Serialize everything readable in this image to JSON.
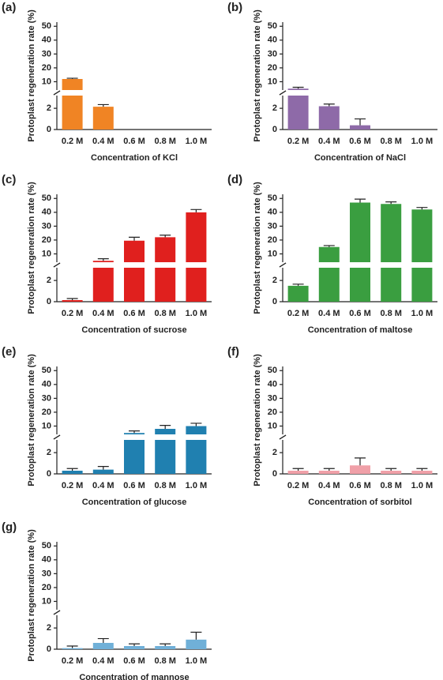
{
  "chart_data": [
    {
      "type": "bar",
      "label": "(a)",
      "y_label": "Protoplast regeneration rate (%)",
      "x_label": "Concentration of KCl",
      "categories": [
        "0.2 M",
        "0.4 M",
        "0.6 M",
        "0.8 M",
        "1.0 M"
      ],
      "values": [
        12,
        2.15,
        0,
        0,
        0
      ],
      "errors": [
        0.5,
        0.2,
        0,
        0,
        0
      ],
      "color": "#f08424",
      "ylim": [
        0,
        53
      ],
      "ybreak": [
        3.2,
        4
      ],
      "yticks": [
        0,
        2,
        10,
        20,
        30,
        40,
        50
      ]
    },
    {
      "type": "bar",
      "label": "(b)",
      "y_label": "Protoplast regeneration rate (%)",
      "x_label": "Concentration of NaCl",
      "categories": [
        "0.2 M",
        "0.4 M",
        "0.6 M",
        "0.8 M",
        "1.0 M"
      ],
      "values": [
        5,
        2.2,
        0.4,
        0,
        0
      ],
      "errors": [
        1,
        0.2,
        0.6,
        0,
        0
      ],
      "color": "#8e6aa8",
      "ylim": [
        0,
        53
      ],
      "ybreak": [
        3.2,
        4
      ],
      "yticks": [
        0,
        2,
        10,
        20,
        30,
        40,
        50
      ]
    },
    {
      "type": "bar",
      "label": "(c)",
      "y_label": "Protoplast regeneration rate (%)",
      "x_label": "Concentration of sucrose",
      "categories": [
        "0.2 M",
        "0.4 M",
        "0.6 M",
        "0.8 M",
        "1.0 M"
      ],
      "values": [
        0.15,
        5,
        19.5,
        22,
        40
      ],
      "errors": [
        0.15,
        1.5,
        2.5,
        1.5,
        2
      ],
      "color": "#e0201e",
      "ylim": [
        0,
        53
      ],
      "ybreak": [
        3.2,
        4
      ],
      "yticks": [
        0,
        2,
        10,
        20,
        30,
        40,
        50
      ]
    },
    {
      "type": "bar",
      "label": "(d)",
      "y_label": "Protoplast regeneration rate (%)",
      "x_label": "Concentration of maltose",
      "categories": [
        "0.2 M",
        "0.4 M",
        "0.6 M",
        "0.8 M",
        "1.0 M"
      ],
      "values": [
        1.5,
        15,
        47,
        46,
        42
      ],
      "errors": [
        0.15,
        1,
        2.5,
        1.5,
        1.5
      ],
      "color": "#3a9e40",
      "ylim": [
        0,
        53
      ],
      "ybreak": [
        3.2,
        4
      ],
      "yticks": [
        0,
        2,
        10,
        20,
        30,
        40,
        50
      ]
    },
    {
      "type": "bar",
      "label": "(e)",
      "y_label": "Protoplast regeneration rate (%)",
      "x_label": "Concentration of glucose",
      "categories": [
        "0.2 M",
        "0.4 M",
        "0.6 M",
        "0.8 M",
        "1.0 M"
      ],
      "values": [
        0.3,
        0.4,
        5,
        8,
        10
      ],
      "errors": [
        0.2,
        0.3,
        1.5,
        2.5,
        2
      ],
      "color": "#2080b0",
      "ylim": [
        0,
        53
      ],
      "ybreak": [
        3.2,
        4
      ],
      "yticks": [
        0,
        2,
        10,
        20,
        30,
        40,
        50
      ]
    },
    {
      "type": "bar",
      "label": "(f)",
      "y_label": "Protoplast regeneration rate (%)",
      "x_label": "Concentration of sorbitol",
      "categories": [
        "0.2 M",
        "0.4 M",
        "0.6 M",
        "0.8 M",
        "1.0 M"
      ],
      "values": [
        0.3,
        0.3,
        0.8,
        0.3,
        0.3
      ],
      "errors": [
        0.2,
        0.2,
        0.7,
        0.2,
        0.2
      ],
      "color": "#f0a0a8",
      "ylim": [
        0,
        53
      ],
      "ybreak": [
        3.2,
        4
      ],
      "yticks": [
        0,
        2,
        10,
        20,
        30,
        40,
        50
      ]
    },
    {
      "type": "bar",
      "label": "(g)",
      "y_label": "Protoplast regeneration rate (%)",
      "x_label": "Concentration of mannose",
      "categories": [
        "0.2 M",
        "0.4 M",
        "0.6 M",
        "0.8 M",
        "1.0 M"
      ],
      "values": [
        0.1,
        0.6,
        0.3,
        0.3,
        0.9
      ],
      "errors": [
        0.2,
        0.4,
        0.2,
        0.2,
        0.7
      ],
      "color": "#70b0d8",
      "ylim": [
        0,
        53
      ],
      "ybreak": [
        3.2,
        4
      ],
      "yticks": [
        0,
        2,
        10,
        20,
        30,
        40,
        50
      ]
    }
  ]
}
